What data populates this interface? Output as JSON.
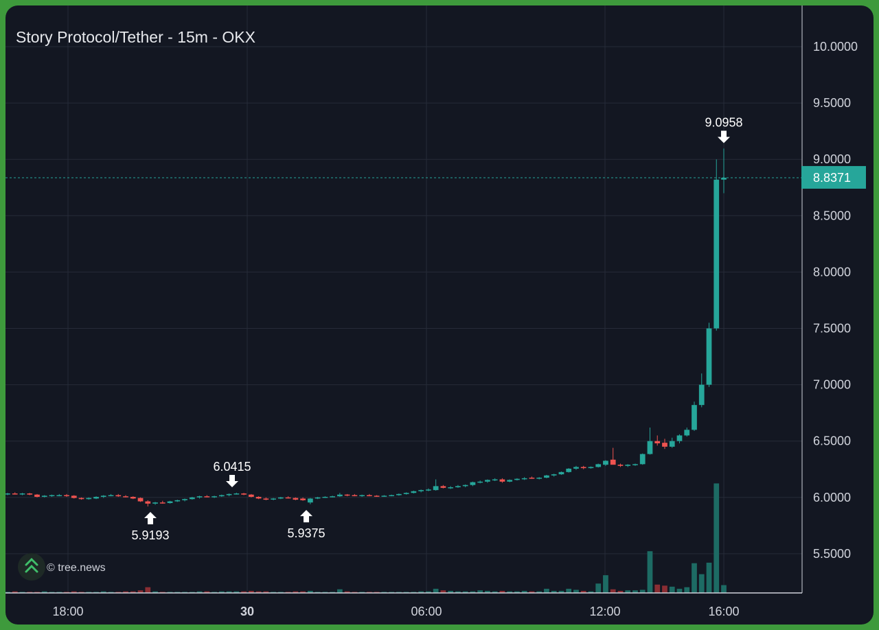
{
  "chart_data": {
    "type": "candlestick",
    "title": "Story Protocol/Tether - 15m - OKX",
    "watermark": "© tree.news",
    "y_ticks": [
      "10.0000",
      "9.5000",
      "9.0000",
      "8.5000",
      "8.0000",
      "7.5000",
      "7.0000",
      "6.5000",
      "6.0000",
      "5.5000"
    ],
    "x_ticks": [
      {
        "label": "18:00",
        "bold": false
      },
      {
        "label": "30",
        "bold": true
      },
      {
        "label": "06:00",
        "bold": false
      },
      {
        "label": "12:00",
        "bold": false
      },
      {
        "label": "16:00",
        "bold": false
      }
    ],
    "ylim": [
      5.1,
      10.4
    ],
    "last_price": {
      "value": 8.8371,
      "label": "8.8371"
    },
    "annotations": [
      {
        "type": "high",
        "value": 9.0958,
        "label": "9.0958"
      },
      {
        "type": "high",
        "value": 6.0415,
        "label": "6.0415"
      },
      {
        "type": "low",
        "value": 5.9193,
        "label": "5.9193"
      },
      {
        "type": "low",
        "value": 5.9375,
        "label": "5.9375"
      }
    ],
    "colors": {
      "up": "#26a69a",
      "down": "#ef5350",
      "up_volume": "#1d6b64",
      "down_volume": "#8a2d33",
      "grid": "#262b38",
      "last_price_line": "#26a69a"
    },
    "candles": [
      [
        6.03,
        6.04,
        6.02,
        6.035
      ],
      [
        6.035,
        6.045,
        6.025,
        6.03
      ],
      [
        6.03,
        6.04,
        6.02,
        6.035
      ],
      [
        6.035,
        6.04,
        6.02,
        6.025
      ],
      [
        6.025,
        6.03,
        6.0,
        6.005
      ],
      [
        6.005,
        6.02,
        6.0,
        6.015
      ],
      [
        6.015,
        6.025,
        6.005,
        6.02
      ],
      [
        6.02,
        6.03,
        6.01,
        6.02
      ],
      [
        6.02,
        6.03,
        6.005,
        6.015
      ],
      [
        6.015,
        6.02,
        5.99,
        5.995
      ],
      [
        5.995,
        6.0,
        5.98,
        5.985
      ],
      [
        5.985,
        6.0,
        5.98,
        5.995
      ],
      [
        5.99,
        6.01,
        5.985,
        6.005
      ],
      [
        6.005,
        6.02,
        5.995,
        6.015
      ],
      [
        6.015,
        6.03,
        6.01,
        6.02
      ],
      [
        6.02,
        6.03,
        6.005,
        6.01
      ],
      [
        6.01,
        6.02,
        6.0,
        6.005
      ],
      [
        6.005,
        6.01,
        5.985,
        5.99
      ],
      [
        5.995,
        6.0,
        5.96,
        5.965
      ],
      [
        5.965,
        5.975,
        5.92,
        5.945
      ],
      [
        5.945,
        5.96,
        5.935,
        5.955
      ],
      [
        5.955,
        5.97,
        5.945,
        5.95
      ],
      [
        5.95,
        5.97,
        5.945,
        5.965
      ],
      [
        5.965,
        5.98,
        5.96,
        5.975
      ],
      [
        5.975,
        5.99,
        5.965,
        5.985
      ],
      [
        5.985,
        6.005,
        5.98,
        6.0
      ],
      [
        6.0,
        6.015,
        5.99,
        6.01
      ],
      [
        6.01,
        6.02,
        6.0,
        6.005
      ],
      [
        6.005,
        6.015,
        5.995,
        6.01
      ],
      [
        6.01,
        6.025,
        6.005,
        6.02
      ],
      [
        6.02,
        6.035,
        6.01,
        6.03
      ],
      [
        6.03,
        6.042,
        6.025,
        6.035
      ],
      [
        6.035,
        6.04,
        6.02,
        6.025
      ],
      [
        6.025,
        6.03,
        6.0,
        6.005
      ],
      [
        6.005,
        6.01,
        5.985,
        5.99
      ],
      [
        5.99,
        6.0,
        5.975,
        5.98
      ],
      [
        5.985,
        5.995,
        5.975,
        5.99
      ],
      [
        5.99,
        6.005,
        5.985,
        6.0
      ],
      [
        6.0,
        6.01,
        5.99,
        5.995
      ],
      [
        5.995,
        6.0,
        5.975,
        5.98
      ],
      [
        5.99,
        6.0,
        5.97,
        5.975
      ],
      [
        5.955,
        5.995,
        5.94,
        5.99
      ],
      [
        5.99,
        6.005,
        5.985,
        6.0
      ],
      [
        6.0,
        6.01,
        5.995,
        6.005
      ],
      [
        6.005,
        6.015,
        6.0,
        6.01
      ],
      [
        6.01,
        6.04,
        6.005,
        6.025
      ],
      [
        6.025,
        6.03,
        6.01,
        6.02
      ],
      [
        6.02,
        6.03,
        6.01,
        6.015
      ],
      [
        6.015,
        6.025,
        6.005,
        6.02
      ],
      [
        6.02,
        6.03,
        6.01,
        6.015
      ],
      [
        6.015,
        6.02,
        6.005,
        6.01
      ],
      [
        6.01,
        6.02,
        6.005,
        6.015
      ],
      [
        6.015,
        6.025,
        6.01,
        6.02
      ],
      [
        6.02,
        6.035,
        6.015,
        6.03
      ],
      [
        6.03,
        6.045,
        6.025,
        6.04
      ],
      [
        6.04,
        6.06,
        6.035,
        6.055
      ],
      [
        6.055,
        6.07,
        6.045,
        6.065
      ],
      [
        6.065,
        6.08,
        6.055,
        6.07
      ],
      [
        6.065,
        6.16,
        6.06,
        6.1
      ],
      [
        6.1,
        6.11,
        6.08,
        6.085
      ],
      [
        6.085,
        6.1,
        6.075,
        6.09
      ],
      [
        6.09,
        6.11,
        6.085,
        6.1
      ],
      [
        6.1,
        6.115,
        6.09,
        6.11
      ],
      [
        6.11,
        6.14,
        6.1,
        6.135
      ],
      [
        6.135,
        6.15,
        6.125,
        6.14
      ],
      [
        6.14,
        6.16,
        6.13,
        6.155
      ],
      [
        6.155,
        6.17,
        6.145,
        6.16
      ],
      [
        6.16,
        6.17,
        6.13,
        6.14
      ],
      [
        6.14,
        6.16,
        6.135,
        6.155
      ],
      [
        6.155,
        6.17,
        6.15,
        6.165
      ],
      [
        6.165,
        6.18,
        6.155,
        6.17
      ],
      [
        6.175,
        6.185,
        6.165,
        6.17
      ],
      [
        6.17,
        6.18,
        6.16,
        6.175
      ],
      [
        6.175,
        6.2,
        6.17,
        6.195
      ],
      [
        6.195,
        6.21,
        6.185,
        6.205
      ],
      [
        6.205,
        6.23,
        6.2,
        6.225
      ],
      [
        6.225,
        6.26,
        6.22,
        6.255
      ],
      [
        6.255,
        6.28,
        6.245,
        6.27
      ],
      [
        6.27,
        6.28,
        6.25,
        6.26
      ],
      [
        6.26,
        6.275,
        6.255,
        6.27
      ],
      [
        6.27,
        6.3,
        6.265,
        6.295
      ],
      [
        6.29,
        6.33,
        6.28,
        6.325
      ],
      [
        6.335,
        6.44,
        6.3,
        6.29
      ],
      [
        6.29,
        6.3,
        6.27,
        6.28
      ],
      [
        6.28,
        6.295,
        6.27,
        6.29
      ],
      [
        6.29,
        6.3,
        6.28,
        6.295
      ],
      [
        6.295,
        6.39,
        6.29,
        6.385
      ],
      [
        6.385,
        6.62,
        6.38,
        6.5
      ],
      [
        6.5,
        6.55,
        6.46,
        6.48
      ],
      [
        6.485,
        6.52,
        6.43,
        6.45
      ],
      [
        6.45,
        6.53,
        6.44,
        6.5
      ],
      [
        6.5,
        6.56,
        6.48,
        6.55
      ],
      [
        6.55,
        6.62,
        6.54,
        6.6
      ],
      [
        6.6,
        6.85,
        6.59,
        6.82
      ],
      [
        6.82,
        7.1,
        6.8,
        7.0
      ],
      [
        7.0,
        7.55,
        6.98,
        7.5
      ],
      [
        7.5,
        9.0,
        7.48,
        8.82
      ],
      [
        8.82,
        9.0958,
        8.7,
        8.8371
      ]
    ],
    "volumes": [
      0.2,
      0.3,
      0.2,
      0.2,
      0.2,
      0.3,
      0.2,
      0.2,
      0.2,
      0.3,
      0.2,
      0.2,
      0.2,
      0.3,
      0.2,
      0.2,
      0.3,
      0.3,
      0.5,
      1.1,
      0.3,
      0.2,
      0.2,
      0.2,
      0.2,
      0.2,
      0.3,
      0.3,
      0.2,
      0.3,
      0.3,
      0.3,
      0.3,
      0.4,
      0.3,
      0.3,
      0.2,
      0.2,
      0.2,
      0.3,
      0.3,
      0.4,
      0.2,
      0.2,
      0.2,
      0.7,
      0.3,
      0.2,
      0.2,
      0.2,
      0.2,
      0.2,
      0.2,
      0.2,
      0.2,
      0.2,
      0.3,
      0.3,
      0.8,
      0.5,
      0.4,
      0.3,
      0.3,
      0.3,
      0.5,
      0.4,
      0.3,
      0.4,
      0.3,
      0.3,
      0.4,
      0.3,
      0.3,
      0.8,
      0.4,
      0.4,
      0.8,
      0.6,
      0.4,
      0.3,
      1.8,
      3.4,
      0.7,
      0.4,
      0.5,
      0.5,
      0.6,
      8.0,
      1.6,
      1.4,
      1.2,
      0.8,
      1.1,
      5.7,
      3.6,
      5.8,
      21.0,
      1.5
    ]
  }
}
